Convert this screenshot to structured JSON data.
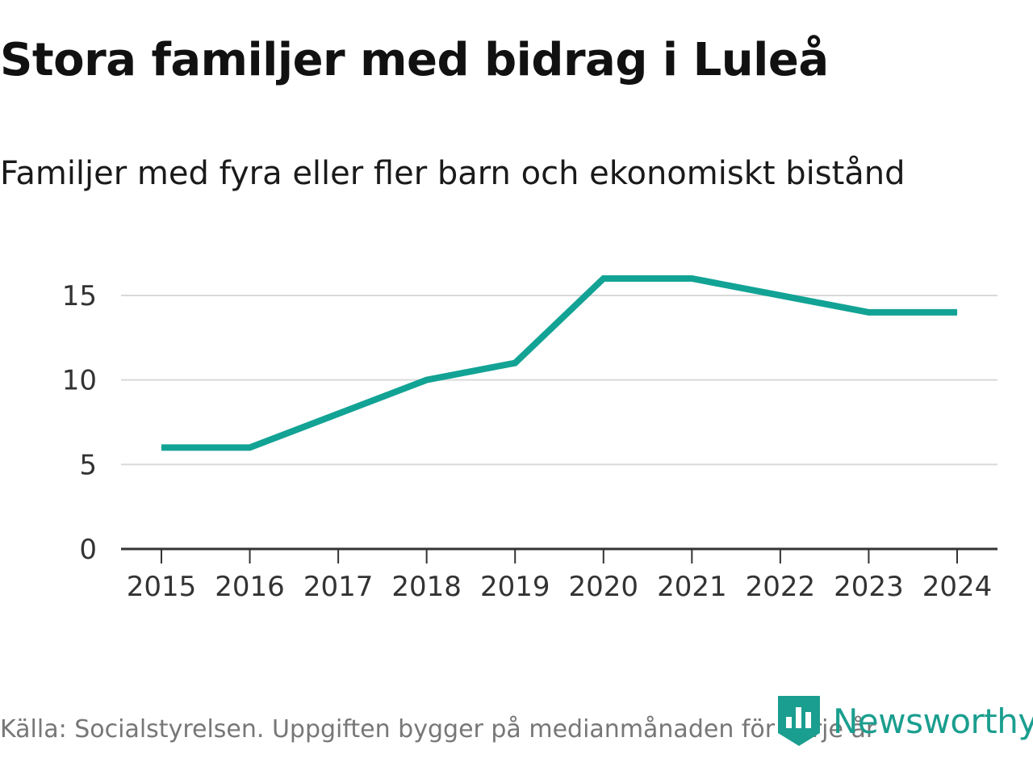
{
  "title": "Stora familjer med bidrag i Luleå",
  "subtitle": "Familjer med fyra eller fler barn och ekonomiskt bistånd",
  "source": "Källa: Socialstyrelsen. Uppgiften bygger på medianmånaden för varje år",
  "brand": {
    "name": "Newsworthy",
    "icon": "newsworthy-logo-icon",
    "color": "#1a9e8f"
  },
  "colors": {
    "line": "#12a395",
    "grid": "#d9d9d9",
    "axis": "#333333"
  },
  "chart_data": {
    "type": "line",
    "title": "Stora familjer med bidrag i Luleå",
    "subtitle": "Familjer med fyra eller fler barn och ekonomiskt bistånd",
    "xlabel": "",
    "ylabel": "",
    "categories": [
      "2015",
      "2016",
      "2017",
      "2018",
      "2019",
      "2020",
      "2021",
      "2022",
      "2023",
      "2024"
    ],
    "series": [
      {
        "name": "Familjer med fyra eller fler barn och ekonomiskt bistånd",
        "values": [
          6,
          6,
          8,
          10,
          11,
          16,
          16,
          15,
          14,
          14
        ]
      }
    ],
    "yticks": [
      0,
      5,
      10,
      15
    ],
    "ylim": [
      0,
      16
    ],
    "grid": true
  }
}
